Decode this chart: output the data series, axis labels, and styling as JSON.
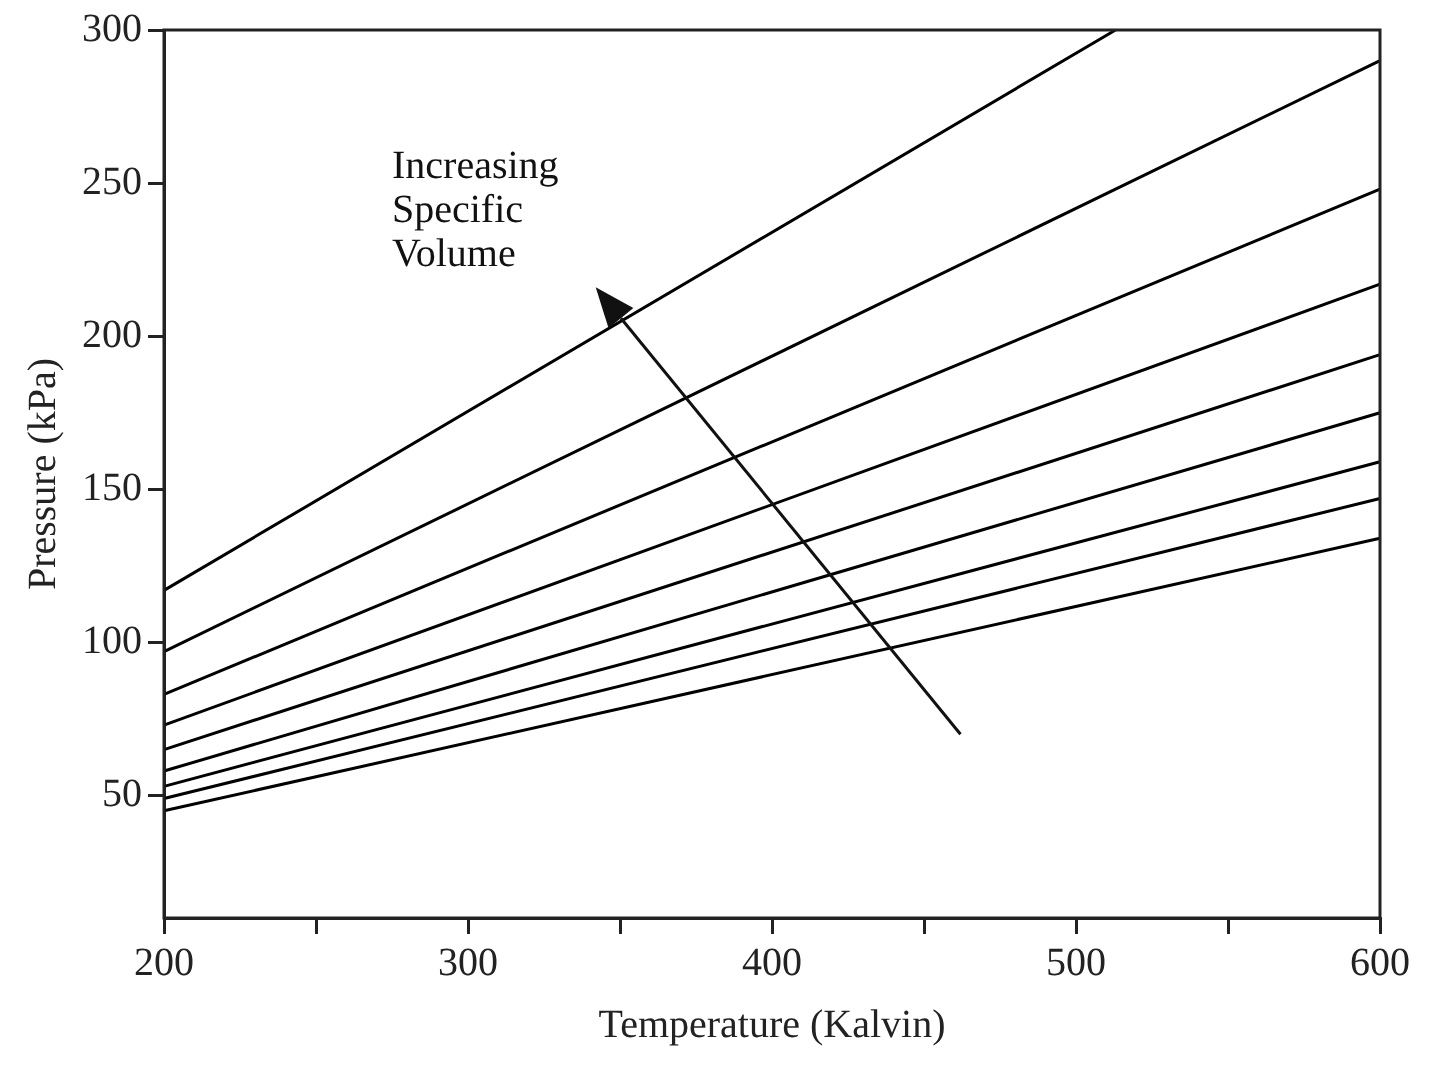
{
  "chart_data": {
    "type": "line",
    "xlabel": "Temperature (Kalvin)",
    "ylabel": "Pressure (kPa)",
    "annotations": [
      "Increasing\nSpecific\nVolume"
    ],
    "xlim": [
      200,
      600
    ],
    "xticks": [
      200,
      {
        "value": 250,
        "label": null
      },
      300,
      {
        "value": 350,
        "label": null
      },
      400,
      {
        "value": 450,
        "label": null
      },
      500,
      {
        "value": 550,
        "label": null
      },
      600
    ],
    "ylim": [
      10,
      300
    ],
    "yticks": [
      50,
      100,
      150,
      200,
      250,
      300
    ],
    "grid": false,
    "legend": false,
    "marker": "none",
    "line_style": "solid",
    "series": [
      {
        "color": "#000000",
        "x": [
          200,
          513
        ],
        "values": [
          117,
          300
        ]
      },
      {
        "color": "#000000",
        "x": [
          200,
          600
        ],
        "values": [
          97,
          290
        ]
      },
      {
        "color": "#000000",
        "x": [
          200,
          600
        ],
        "values": [
          83,
          248
        ]
      },
      {
        "color": "#000000",
        "x": [
          200,
          600
        ],
        "values": [
          73,
          217
        ]
      },
      {
        "color": "#000000",
        "x": [
          200,
          600
        ],
        "values": [
          65,
          194
        ]
      },
      {
        "color": "#000000",
        "x": [
          200,
          600
        ],
        "values": [
          58,
          175
        ]
      },
      {
        "color": "#000000",
        "x": [
          200,
          600
        ],
        "values": [
          53,
          159
        ]
      },
      {
        "color": "#000000",
        "x": [
          200,
          600
        ],
        "values": [
          49,
          147
        ]
      },
      {
        "color": "#000000",
        "x": [
          200,
          600
        ],
        "values": [
          45,
          134
        ]
      }
    ]
  }
}
